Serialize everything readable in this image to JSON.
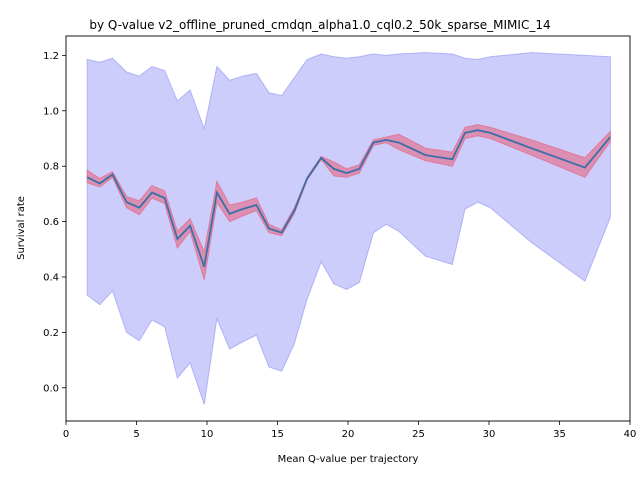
{
  "chart_data": {
    "type": "line",
    "title": "by Q-value v2_offline_pruned_cmdqn_alpha1.0_cql0.2_50k_sparse_MIMIC_14",
    "xlabel": "Mean Q-value per trajectory",
    "ylabel": "Survival rate",
    "xlim": [
      0,
      40
    ],
    "ylim": [
      -0.12,
      1.27
    ],
    "xticks": [
      0,
      5,
      10,
      15,
      20,
      25,
      30,
      35,
      40
    ],
    "yticks": [
      0.0,
      0.2,
      0.4,
      0.6,
      0.8,
      1.0,
      1.2
    ],
    "grid": false,
    "colors": {
      "line": "#3b6fa8",
      "inner_band": "#e07a9a",
      "outer_band": "#9a9cf5"
    },
    "series": [
      {
        "x": [
          1.5,
          2.4,
          3.3,
          4.3,
          5.2,
          6.1,
          7.0,
          7.9,
          8.8,
          9.8,
          10.7,
          11.6,
          12.5,
          13.5,
          14.4,
          15.3,
          16.2,
          17.1,
          18.1,
          19.0,
          19.9,
          20.8,
          21.8,
          22.7,
          23.6,
          25.5,
          27.4,
          28.3,
          29.2,
          30.1,
          33.0,
          36.8,
          38.6
        ],
        "y": [
          0.76,
          0.738,
          0.77,
          0.67,
          0.65,
          0.705,
          0.685,
          0.537,
          0.585,
          0.437,
          0.705,
          0.628,
          0.645,
          0.66,
          0.575,
          0.56,
          0.64,
          0.755,
          0.83,
          0.79,
          0.775,
          0.79,
          0.885,
          0.895,
          0.885,
          0.84,
          0.825,
          0.92,
          0.93,
          0.92,
          0.865,
          0.795,
          0.905
        ],
        "inner_lower": [
          0.74,
          0.725,
          0.76,
          0.65,
          0.625,
          0.685,
          0.665,
          0.505,
          0.565,
          0.39,
          0.67,
          0.6,
          0.62,
          0.64,
          0.56,
          0.55,
          0.63,
          0.75,
          0.825,
          0.765,
          0.76,
          0.775,
          0.875,
          0.885,
          0.86,
          0.82,
          0.8,
          0.9,
          0.91,
          0.9,
          0.84,
          0.76,
          0.89
        ],
        "inner_upper": [
          0.785,
          0.755,
          0.78,
          0.69,
          0.675,
          0.73,
          0.71,
          0.565,
          0.61,
          0.49,
          0.745,
          0.66,
          0.67,
          0.685,
          0.59,
          0.57,
          0.65,
          0.76,
          0.835,
          0.815,
          0.79,
          0.805,
          0.895,
          0.905,
          0.915,
          0.865,
          0.85,
          0.94,
          0.95,
          0.94,
          0.895,
          0.83,
          0.925
        ],
        "outer_lower": [
          0.335,
          0.3,
          0.35,
          0.2,
          0.17,
          0.245,
          0.22,
          0.035,
          0.09,
          -0.06,
          0.25,
          0.14,
          0.165,
          0.19,
          0.075,
          0.06,
          0.16,
          0.32,
          0.455,
          0.375,
          0.355,
          0.38,
          0.56,
          0.59,
          0.565,
          0.475,
          0.445,
          0.645,
          0.67,
          0.65,
          0.525,
          0.385,
          0.615
        ],
        "outer_upper": [
          1.185,
          1.175,
          1.19,
          1.14,
          1.125,
          1.16,
          1.145,
          1.035,
          1.075,
          0.935,
          1.16,
          1.11,
          1.125,
          1.135,
          1.065,
          1.055,
          1.12,
          1.185,
          1.205,
          1.195,
          1.19,
          1.195,
          1.205,
          1.2,
          1.205,
          1.21,
          1.205,
          1.19,
          1.185,
          1.195,
          1.21,
          1.2,
          1.195
        ]
      }
    ]
  }
}
